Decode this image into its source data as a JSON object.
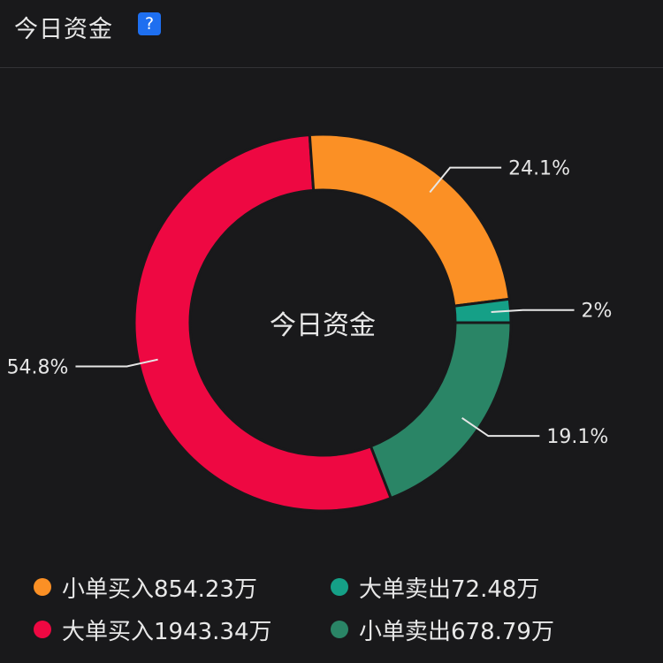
{
  "header": {
    "title": "今日资金",
    "help_label": "?"
  },
  "chart_data": {
    "type": "pie",
    "center_label": "今日资金",
    "categories": [
      "小单卖出",
      "大单买入",
      "小单买入",
      "大单卖出"
    ],
    "values": [
      19.1,
      54.8,
      24.1,
      2
    ],
    "value_labels": [
      "19.1%",
      "54.8%",
      "24.1%",
      "2%"
    ],
    "colors": [
      "#2a8566",
      "#ee0842",
      "#fb9025",
      "#15a087"
    ]
  },
  "legend": [
    {
      "label": "小单买入854.23万",
      "color": "#fb9025"
    },
    {
      "label": "大单卖出72.48万",
      "color": "#15a087"
    },
    {
      "label": "大单买入1943.34万",
      "color": "#ee0842"
    },
    {
      "label": "小单卖出678.79万",
      "color": "#2a8566"
    }
  ]
}
